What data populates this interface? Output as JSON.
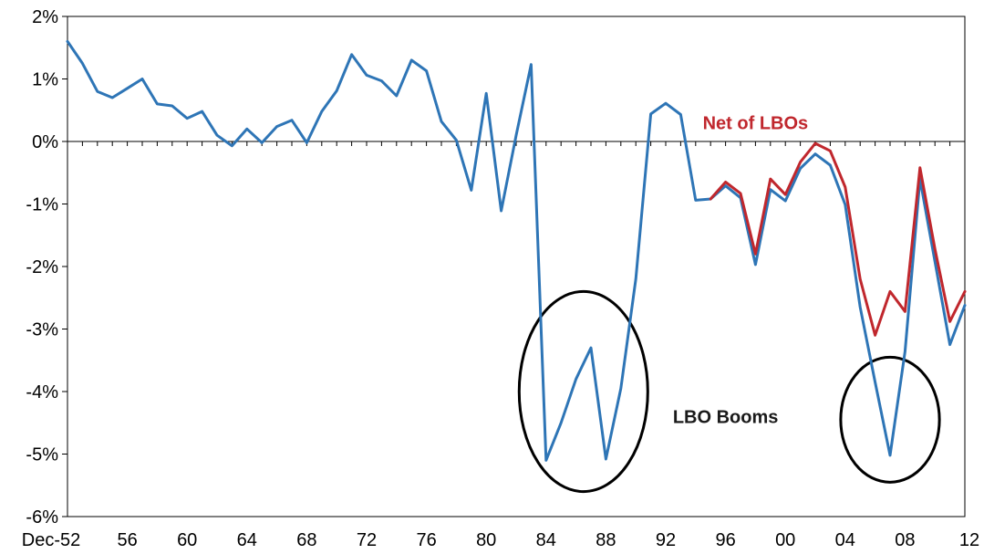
{
  "chart_data": {
    "type": "line",
    "title": "",
    "xlabel": "",
    "ylabel": "",
    "ylim": [
      -6,
      2
    ],
    "yticks": [
      2,
      1,
      0,
      -1,
      -2,
      -3,
      -4,
      -5,
      -6
    ],
    "ytick_labels": [
      "2%",
      "1%",
      "0%",
      "-1%",
      "-2%",
      "-3%",
      "-4%",
      "-5%",
      "-6%"
    ],
    "xlim": [
      1952,
      2012
    ],
    "xticks": [
      1952,
      1956,
      1960,
      1964,
      1968,
      1972,
      1976,
      1980,
      1984,
      1988,
      1992,
      1996,
      2000,
      2004,
      2008,
      2012
    ],
    "xtick_labels": [
      "Dec-52",
      "56",
      "60",
      "64",
      "68",
      "72",
      "76",
      "80",
      "84",
      "88",
      "92",
      "96",
      "00",
      "04",
      "08",
      "12"
    ],
    "grid": false,
    "series": [
      {
        "name": "",
        "color": "#2e75b6",
        "x": [
          1952,
          1953,
          1954,
          1955,
          1956,
          1957,
          1958,
          1959,
          1960,
          1961,
          1962,
          1963,
          1964,
          1965,
          1966,
          1967,
          1968,
          1969,
          1970,
          1971,
          1972,
          1973,
          1974,
          1975,
          1976,
          1977,
          1978,
          1979,
          1980,
          1981,
          1982,
          1983,
          1984,
          1985,
          1986,
          1987,
          1988,
          1989,
          1990,
          1991,
          1992,
          1993,
          1994,
          1995,
          1996,
          1997,
          1998,
          1999,
          2000,
          2001,
          2002,
          2003,
          2004,
          2005,
          2006,
          2007,
          2008,
          2009,
          2010,
          2011,
          2012
        ],
        "values": [
          1.6,
          1.25,
          0.8,
          0.7,
          0.85,
          1.0,
          0.6,
          0.57,
          0.37,
          0.48,
          0.1,
          -0.07,
          0.2,
          -0.02,
          0.24,
          0.34,
          -0.02,
          0.48,
          0.81,
          1.39,
          1.06,
          0.97,
          0.73,
          1.3,
          1.13,
          0.32,
          0.02,
          -0.78,
          0.77,
          -1.11,
          0.1,
          1.23,
          -5.1,
          -4.5,
          -3.8,
          -3.3,
          -5.08,
          -3.95,
          -2.2,
          0.44,
          0.61,
          0.43,
          -0.94,
          -0.92,
          -0.71,
          -0.9,
          -1.97,
          -0.77,
          -0.95,
          -0.43,
          -0.2,
          -0.38,
          -1.01,
          -2.65,
          -3.85,
          -5.02,
          -3.36,
          -0.6,
          -1.92,
          -3.25,
          -2.62
        ]
      },
      {
        "name": "Net of LBOs",
        "color": "#c0272d",
        "x": [
          1995,
          1996,
          1997,
          1998,
          1999,
          2000,
          2001,
          2002,
          2003,
          2004,
          2005,
          2006,
          2007,
          2008,
          2009,
          2010,
          2011,
          2012
        ],
        "values": [
          -0.92,
          -0.65,
          -0.83,
          -1.8,
          -0.6,
          -0.85,
          -0.33,
          -0.03,
          -0.15,
          -0.73,
          -2.2,
          -3.1,
          -2.4,
          -2.72,
          -0.42,
          -1.72,
          -2.88,
          -2.4
        ]
      }
    ],
    "annotations": [
      {
        "text": "Net of LBOs",
        "color": "#c0272d",
        "x": 1998,
        "y": 0.2
      },
      {
        "text": "LBO Booms",
        "color": "#1a1a1a",
        "x": 1996,
        "y": -4.5
      }
    ],
    "highlight_regions": [
      {
        "name": "lbo-boom-1980s",
        "x_center": 1986.5,
        "y_center": -4.0,
        "x_radius": 4.3,
        "y_radius": 1.6
      },
      {
        "name": "lbo-boom-2000s",
        "x_center": 2007.0,
        "y_center": -4.45,
        "x_radius": 3.3,
        "y_radius": 1.0
      }
    ]
  }
}
